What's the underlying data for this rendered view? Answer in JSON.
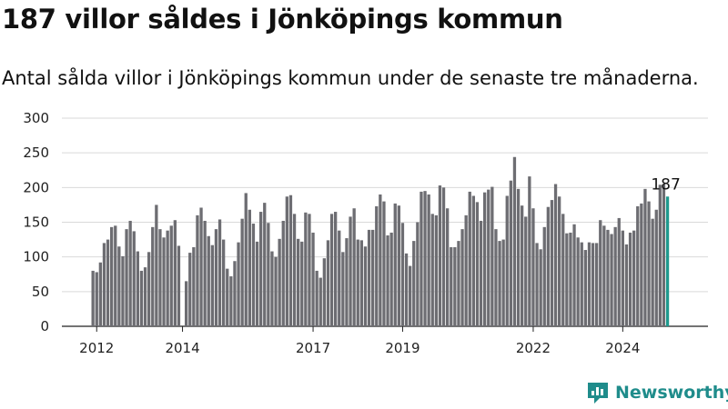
{
  "title": "187 villor såldes i Jönköpings kommun",
  "subtitle": "Antal sålda villor i Jönköpings kommun under de senaste tre månaderna.",
  "brand": {
    "name": "Newsworthy",
    "color": "#1f8c8b",
    "icon": "newsworthy-logo-icon"
  },
  "colors": {
    "bar": "#6d6d72",
    "highlight": "#1f9a8e",
    "grid": "#d9d9d9",
    "axis": "#222222"
  },
  "chart_data": {
    "type": "bar",
    "title": "187 villor såldes i Jönköpings kommun",
    "xlabel": "",
    "ylabel": "",
    "ylim": [
      0,
      300
    ],
    "yticks": [
      0,
      50,
      100,
      150,
      200,
      250,
      300
    ],
    "xticks": [
      {
        "label": "2012",
        "index": 1
      },
      {
        "label": "2014",
        "index": 24
      },
      {
        "label": "2017",
        "index": 59
      },
      {
        "label": "2019",
        "index": 83
      },
      {
        "label": "2022",
        "index": 118
      },
      {
        "label": "2024",
        "index": 142
      }
    ],
    "grid": true,
    "annotation": {
      "label": "187",
      "value": 187
    },
    "values": [
      80,
      78,
      92,
      120,
      125,
      143,
      145,
      115,
      101,
      140,
      152,
      137,
      108,
      80,
      85,
      107,
      143,
      175,
      140,
      128,
      138,
      145,
      153,
      116,
      0,
      65,
      106,
      114,
      160,
      171,
      152,
      130,
      117,
      140,
      154,
      125,
      83,
      72,
      94,
      121,
      155,
      192,
      168,
      148,
      122,
      165,
      178,
      149,
      108,
      100,
      126,
      152,
      187,
      189,
      162,
      126,
      122,
      164,
      162,
      135,
      80,
      70,
      98,
      124,
      162,
      165,
      138,
      107,
      127,
      158,
      170,
      125,
      124,
      115,
      139,
      139,
      173,
      190,
      180,
      131,
      135,
      177,
      174,
      149,
      105,
      87,
      123,
      150,
      194,
      195,
      190,
      162,
      160,
      203,
      200,
      170,
      114,
      114,
      123,
      140,
      160,
      194,
      188,
      179,
      152,
      193,
      197,
      201,
      140,
      123,
      125,
      188,
      210,
      244,
      198,
      174,
      158,
      216,
      170,
      120,
      111,
      143,
      172,
      182,
      205,
      187,
      162,
      134,
      135,
      147,
      128,
      121,
      110,
      121,
      120,
      120,
      153,
      145,
      139,
      133,
      143,
      156,
      138,
      118,
      135,
      138,
      173,
      177,
      198,
      180,
      155,
      168,
      204,
      205,
      187
    ]
  }
}
